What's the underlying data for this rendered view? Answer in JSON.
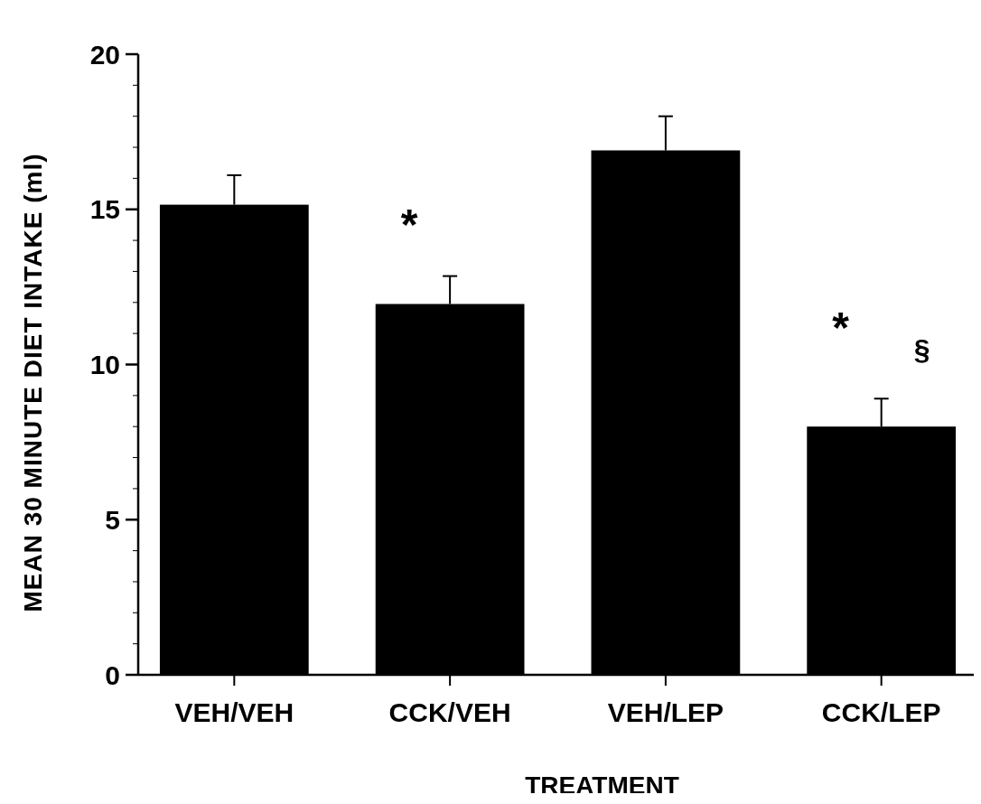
{
  "chart_data": {
    "type": "bar",
    "xlabel": "TREATMENT",
    "ylabel": "MEAN 30 MINUTE DIET INTAKE (ml)",
    "categories": [
      "VEH/VEH",
      "CCK/VEH",
      "VEH/LEP",
      "CCK/LEP"
    ],
    "values": [
      15.15,
      11.95,
      16.9,
      8.0
    ],
    "errors": [
      [
        15.15,
        16.1
      ],
      [
        11.95,
        12.85
      ],
      [
        16.9,
        18.0
      ],
      [
        8.0,
        8.9
      ]
    ],
    "color": "#000000",
    "ylim": [
      0,
      20
    ],
    "yticks": [
      0,
      {
        "value": 1,
        "label": null
      },
      {
        "value": 2,
        "label": null
      },
      {
        "value": 3,
        "label": null
      },
      {
        "value": 4,
        "label": null
      },
      5,
      {
        "value": 6,
        "label": null
      },
      {
        "value": 7,
        "label": null
      },
      {
        "value": 8,
        "label": null
      },
      {
        "value": 9,
        "label": null
      },
      10,
      {
        "value": 11,
        "label": null
      },
      {
        "value": 12,
        "label": null
      },
      {
        "value": 13,
        "label": null
      },
      {
        "value": 14,
        "label": null
      },
      15,
      {
        "value": 16,
        "label": null
      },
      {
        "value": 17,
        "label": null
      },
      {
        "value": 18,
        "label": null
      },
      {
        "value": 19,
        "label": null
      },
      20
    ],
    "annotations": [
      "*",
      "*",
      "§"
    ],
    "grid": false
  }
}
